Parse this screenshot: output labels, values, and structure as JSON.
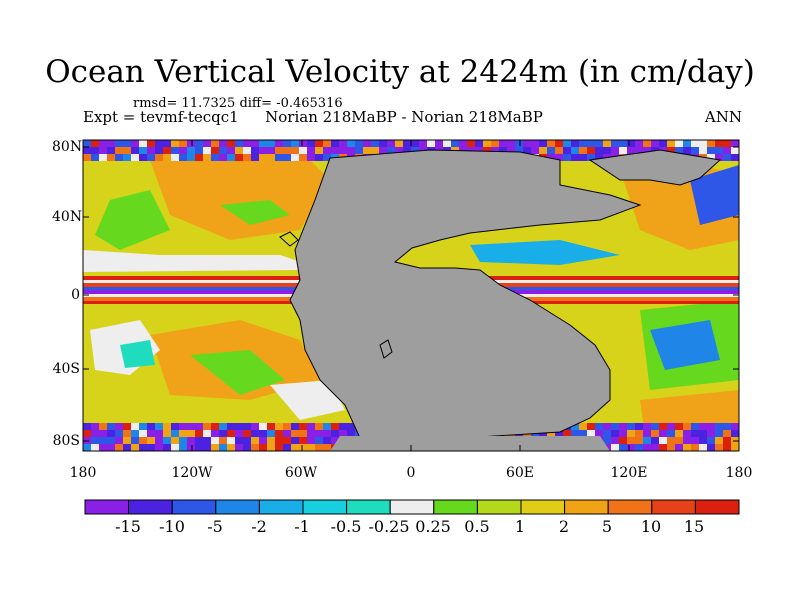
{
  "header": {
    "title": "Ocean Vertical Velocity at 2424m (in cm/day)",
    "stats": "rmsd= 11.7325 diff= -0.465316",
    "left": "Expt = tevmf-tecqc1",
    "center": "Norian 218MaBP - Norian 218MaBP",
    "right": "ANN"
  },
  "axes": {
    "lat_ticks": [
      "80N",
      "40N",
      "0",
      "40S",
      "80S"
    ],
    "lon_ticks": [
      "180",
      "120W",
      "60W",
      "0",
      "60E",
      "120E",
      "180"
    ]
  },
  "colorbar": {
    "labels": [
      "-15",
      "-10",
      "-5",
      "-2",
      "-1",
      "-0.5",
      "-0.25",
      "0.25",
      "0.5",
      "1",
      "2",
      "5",
      "10",
      "15"
    ],
    "colors": [
      "#8a1fe6",
      "#4b22e0",
      "#2e57e8",
      "#1f86e8",
      "#1aaee8",
      "#18cfe0",
      "#20dcbf",
      "#eeeeee",
      "#66d91f",
      "#b4d91a",
      "#e1cc18",
      "#f1a316",
      "#f07318",
      "#e74119",
      "#dc2010"
    ]
  },
  "map": {
    "land_color": "#9e9e9e",
    "ocean_base_color": "#d6d31a"
  }
}
